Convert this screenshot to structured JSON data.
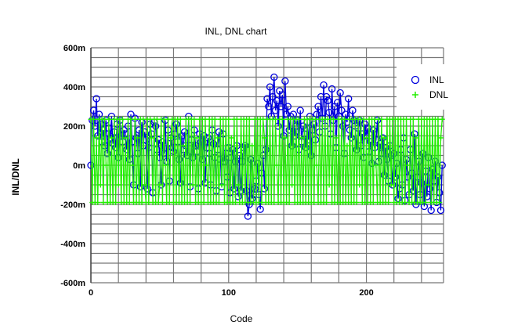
{
  "chart_data": {
    "type": "line",
    "title": "INL, DNL chart",
    "xlabel": "Code",
    "ylabel": "INL/DNL",
    "unit": "m",
    "xlim": [
      0,
      256
    ],
    "ylim": [
      -600,
      600
    ],
    "xticks": [
      {
        "v": 0,
        "label": "0"
      },
      {
        "v": 100,
        "label": "100"
      },
      {
        "v": 200,
        "label": "200"
      }
    ],
    "yticks": [
      {
        "v": 600,
        "label": "600m"
      },
      {
        "v": 400,
        "label": "400m"
      },
      {
        "v": 200,
        "label": "200m"
      },
      {
        "v": 0,
        "label": "0m"
      },
      {
        "v": -200,
        "label": "-200m"
      },
      {
        "v": -400,
        "label": "-400m"
      },
      {
        "v": -600,
        "label": "-600m"
      }
    ],
    "grid": true,
    "legend_position": "top-right",
    "series": [
      {
        "name": "INL",
        "color": "#0000dd",
        "marker": "circle",
        "values": [
          0,
          230,
          280,
          200,
          340,
          150,
          260,
          210,
          120,
          180,
          100,
          230,
          60,
          190,
          140,
          250,
          110,
          170,
          90,
          210,
          40,
          230,
          150,
          120,
          180,
          160,
          80,
          200,
          30,
          260,
          120,
          -100,
          240,
          140,
          60,
          180,
          -110,
          220,
          100,
          170,
          130,
          -120,
          90,
          210,
          160,
          -140,
          220,
          200,
          80,
          130,
          40,
          -100,
          120,
          60,
          230,
          20,
          180,
          -80,
          140,
          90,
          70,
          160,
          210,
          120,
          30,
          -90,
          150,
          80,
          170,
          100,
          50,
          250,
          -110,
          130,
          40,
          180,
          100,
          70,
          -120,
          160,
          120,
          30,
          150,
          -90,
          90,
          140,
          60,
          -100,
          180,
          110,
          40,
          -130,
          80,
          170,
          30,
          -110,
          160,
          20,
          60,
          -60,
          90,
          -140,
          40,
          80,
          -120,
          20,
          100,
          -160,
          50,
          -130,
          20,
          90,
          100,
          -130,
          -260,
          -200,
          30,
          -170,
          -150,
          -120,
          -80,
          10,
          -150,
          -225,
          -40,
          50,
          -120,
          80,
          340,
          300,
          400,
          250,
          350,
          450,
          280,
          330,
          200,
          380,
          300,
          360,
          150,
          430,
          260,
          300,
          180,
          250,
          100,
          260,
          150,
          200,
          230,
          80,
          280,
          120,
          200,
          160,
          90,
          220,
          130,
          250,
          50,
          180,
          210,
          130,
          260,
          300,
          170,
          350,
          240,
          410,
          200,
          350,
          330,
          270,
          160,
          390,
          230,
          300,
          90,
          320,
          250,
          370,
          280,
          200,
          60,
          260,
          220,
          340,
          180,
          140,
          280,
          230,
          200,
          80,
          190,
          230,
          100,
          160,
          40,
          210,
          150,
          190,
          70,
          120,
          10,
          180,
          90,
          130,
          230,
          20,
          110,
          60,
          140,
          -50,
          90,
          30,
          -80,
          100,
          50,
          -100,
          60,
          -60,
          10,
          -170,
          -120,
          80,
          -100,
          140,
          -180,
          30,
          -60,
          -150,
          80,
          -40,
          -130,
          160,
          -200,
          -60,
          20,
          -150,
          -90,
          60,
          -210,
          -30,
          -160,
          40,
          -120,
          -230,
          -20,
          -80,
          20,
          -190,
          -60,
          -140,
          -230,
          0
        ]
      },
      {
        "name": "DNL",
        "color": "#22ee00",
        "marker": "plus",
        "values": [
          235,
          -190,
          235,
          -190,
          140,
          -190,
          235,
          -100,
          235,
          -190,
          235,
          0,
          -190,
          235,
          -190,
          140,
          -190,
          235,
          -190,
          235,
          -100,
          235,
          -190,
          235,
          -190,
          140,
          -190,
          235,
          -190,
          235,
          0,
          -190,
          235,
          -190,
          140,
          -190,
          235,
          -190,
          235,
          -100,
          -190,
          235,
          -190,
          235,
          140,
          -190,
          235,
          -190,
          235,
          -190,
          -100,
          235,
          -190,
          235,
          0,
          -190,
          235,
          -190,
          140,
          235,
          -190,
          235,
          -190,
          235,
          -190,
          235,
          -190,
          100,
          -190,
          235,
          -190,
          235,
          -190,
          235,
          -100,
          235,
          -190,
          140,
          -190,
          235,
          -190,
          235,
          -190,
          235,
          0,
          -190,
          235,
          -190,
          235,
          -190,
          235,
          -190,
          140,
          -190,
          235,
          -100,
          235,
          -190,
          235,
          -190,
          235,
          -190,
          140,
          -190,
          235,
          -190,
          235,
          -100,
          -190,
          235,
          -190,
          235,
          -190,
          235,
          -190,
          235,
          -190,
          100,
          -190,
          235,
          -190,
          235,
          -190,
          235,
          -190,
          235,
          140,
          -190,
          235,
          -190,
          235,
          -190,
          235,
          -190,
          235,
          0,
          -190,
          235,
          -190,
          235,
          -190,
          140,
          -190,
          235,
          -190,
          235,
          -100,
          235,
          -190,
          235,
          -190,
          235,
          -190,
          140,
          -190,
          235,
          -190,
          235,
          -190,
          235,
          -190,
          235,
          -190,
          235,
          0,
          -190,
          235,
          -190,
          235,
          -190,
          235,
          -190,
          235,
          -100,
          235,
          -190,
          235,
          -190,
          140,
          -190,
          235,
          -190,
          235,
          -190,
          235,
          -190,
          100,
          -190,
          235,
          -190,
          235,
          -190,
          235,
          -190,
          235,
          -100,
          235,
          -190,
          235,
          -190,
          140,
          -190,
          235,
          -190,
          235,
          -190,
          235,
          0,
          -190,
          235,
          -190,
          235,
          -190,
          140,
          -190,
          235,
          -190,
          235,
          -100,
          235,
          -190,
          235,
          -190,
          235,
          -190,
          235,
          -190,
          235,
          -190,
          235,
          0,
          -190,
          235,
          -190,
          235,
          -190,
          140,
          -190,
          235,
          -190,
          235,
          -190,
          235,
          -190,
          235,
          -100,
          235,
          -190,
          235,
          -190,
          235,
          -190,
          235,
          -190,
          140,
          235
        ]
      }
    ]
  }
}
